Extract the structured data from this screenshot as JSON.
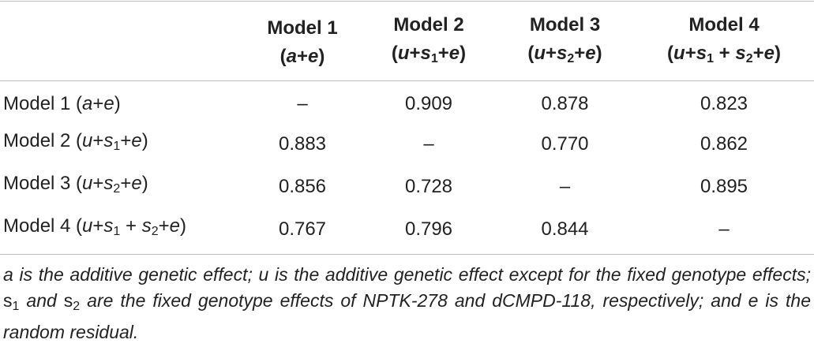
{
  "table": {
    "columns": [
      {
        "name": "Model 1",
        "formula": [
          "(",
          {
            "text": "a",
            "style": "italic"
          },
          "+",
          {
            "text": "e",
            "style": "italic"
          },
          ")"
        ]
      },
      {
        "name": "Model 2",
        "formula": [
          "(",
          {
            "text": "u",
            "style": "italic"
          },
          "+",
          {
            "text": "s",
            "style": "italic"
          },
          {
            "text": "1",
            "style": "sub"
          },
          "+",
          {
            "text": "e",
            "style": "italic"
          },
          ")"
        ]
      },
      {
        "name": "Model 3",
        "formula": [
          "(",
          {
            "text": "u",
            "style": "italic"
          },
          "+",
          {
            "text": "s",
            "style": "italic"
          },
          {
            "text": "2",
            "style": "sub"
          },
          "+",
          {
            "text": "e",
            "style": "italic"
          },
          ")"
        ]
      },
      {
        "name": "Model 4",
        "formula": [
          "(",
          {
            "text": "u",
            "style": "italic"
          },
          "+",
          {
            "text": "s",
            "style": "italic"
          },
          {
            "text": "1",
            "style": "sub"
          },
          " + ",
          {
            "text": "s",
            "style": "italic"
          },
          {
            "text": "2",
            "style": "sub"
          },
          "+",
          {
            "text": "e",
            "style": "italic"
          },
          ")"
        ]
      }
    ],
    "rows": [
      {
        "label": [
          "Model 1 (",
          {
            "text": "a",
            "style": "italic"
          },
          "+",
          {
            "text": "e",
            "style": "italic"
          },
          ")"
        ],
        "values": [
          "–",
          "0.909",
          "0.878",
          "0.823"
        ]
      },
      {
        "label": [
          "Model 2 (",
          {
            "text": "u",
            "style": "italic"
          },
          "+",
          {
            "text": "s",
            "style": "italic"
          },
          {
            "text": "1",
            "style": "sub"
          },
          "+",
          {
            "text": "e",
            "style": "italic"
          },
          ")"
        ],
        "values": [
          "0.883",
          "–",
          "0.770",
          "0.862"
        ]
      },
      {
        "label": [
          "Model 3 (",
          {
            "text": "u",
            "style": "italic"
          },
          "+",
          {
            "text": "s",
            "style": "italic"
          },
          {
            "text": "2",
            "style": "sub"
          },
          "+",
          {
            "text": "e",
            "style": "italic"
          },
          ")"
        ],
        "values": [
          "0.856",
          "0.728",
          "–",
          "0.895"
        ]
      },
      {
        "label": [
          "Model 4 (",
          {
            "text": "u",
            "style": "italic"
          },
          "+",
          {
            "text": "s",
            "style": "italic"
          },
          {
            "text": "1",
            "style": "sub"
          },
          " + ",
          {
            "text": "s",
            "style": "italic"
          },
          {
            "text": "2",
            "style": "sub"
          },
          "+",
          {
            "text": "e",
            "style": "italic"
          },
          ")"
        ],
        "values": [
          "0.767",
          "0.796",
          "0.844",
          "–"
        ]
      }
    ]
  },
  "footnote": [
    {
      "text": "a is the additive genetic effect; u is the additive genetic effect except for the fixed genotype effects; ",
      "style": "italic"
    },
    "s",
    {
      "text": "1",
      "style": "sub"
    },
    {
      "text": " and ",
      "style": "italic"
    },
    "s",
    {
      "text": "2",
      "style": "sub"
    },
    {
      "text": " are the fixed genotype effects of NPTK-278 and dCMPD-118, respectively; and e is the random residual.",
      "style": "italic"
    }
  ]
}
